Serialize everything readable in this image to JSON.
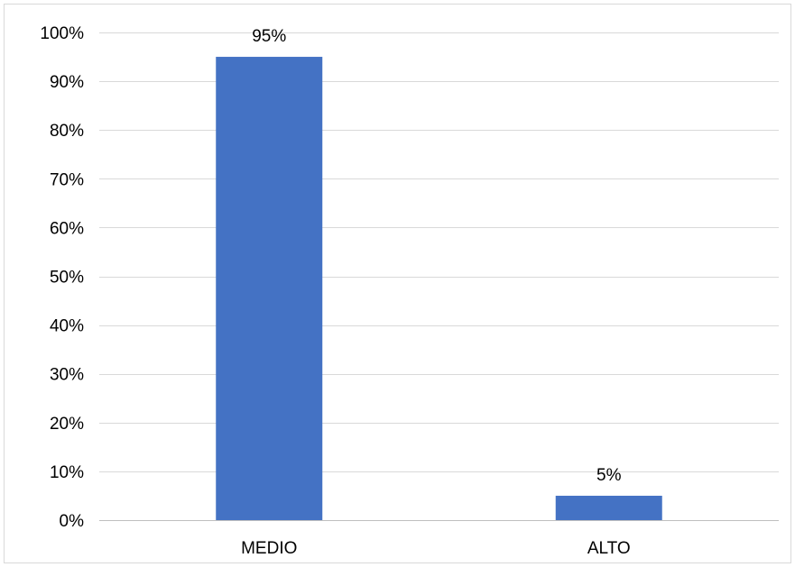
{
  "chart_data": {
    "type": "bar",
    "categories": [
      "MEDIO",
      "ALTO"
    ],
    "values": [
      95,
      5
    ],
    "data_labels": [
      "95%",
      "5%"
    ],
    "ylim": [
      0,
      100
    ],
    "y_ticks": [
      0,
      10,
      20,
      30,
      40,
      50,
      60,
      70,
      80,
      90,
      100
    ],
    "y_tick_labels": [
      "0%",
      "10%",
      "20%",
      "30%",
      "40%",
      "50%",
      "60%",
      "70%",
      "80%",
      "90%",
      "100%"
    ],
    "grid": true,
    "legend": "none",
    "title": "",
    "xlabel": "",
    "ylabel": "",
    "colors": {
      "bar": "#4472c4",
      "gridline": "#d9d9d9",
      "axis": "#bfbfbf",
      "text": "#000000"
    }
  }
}
